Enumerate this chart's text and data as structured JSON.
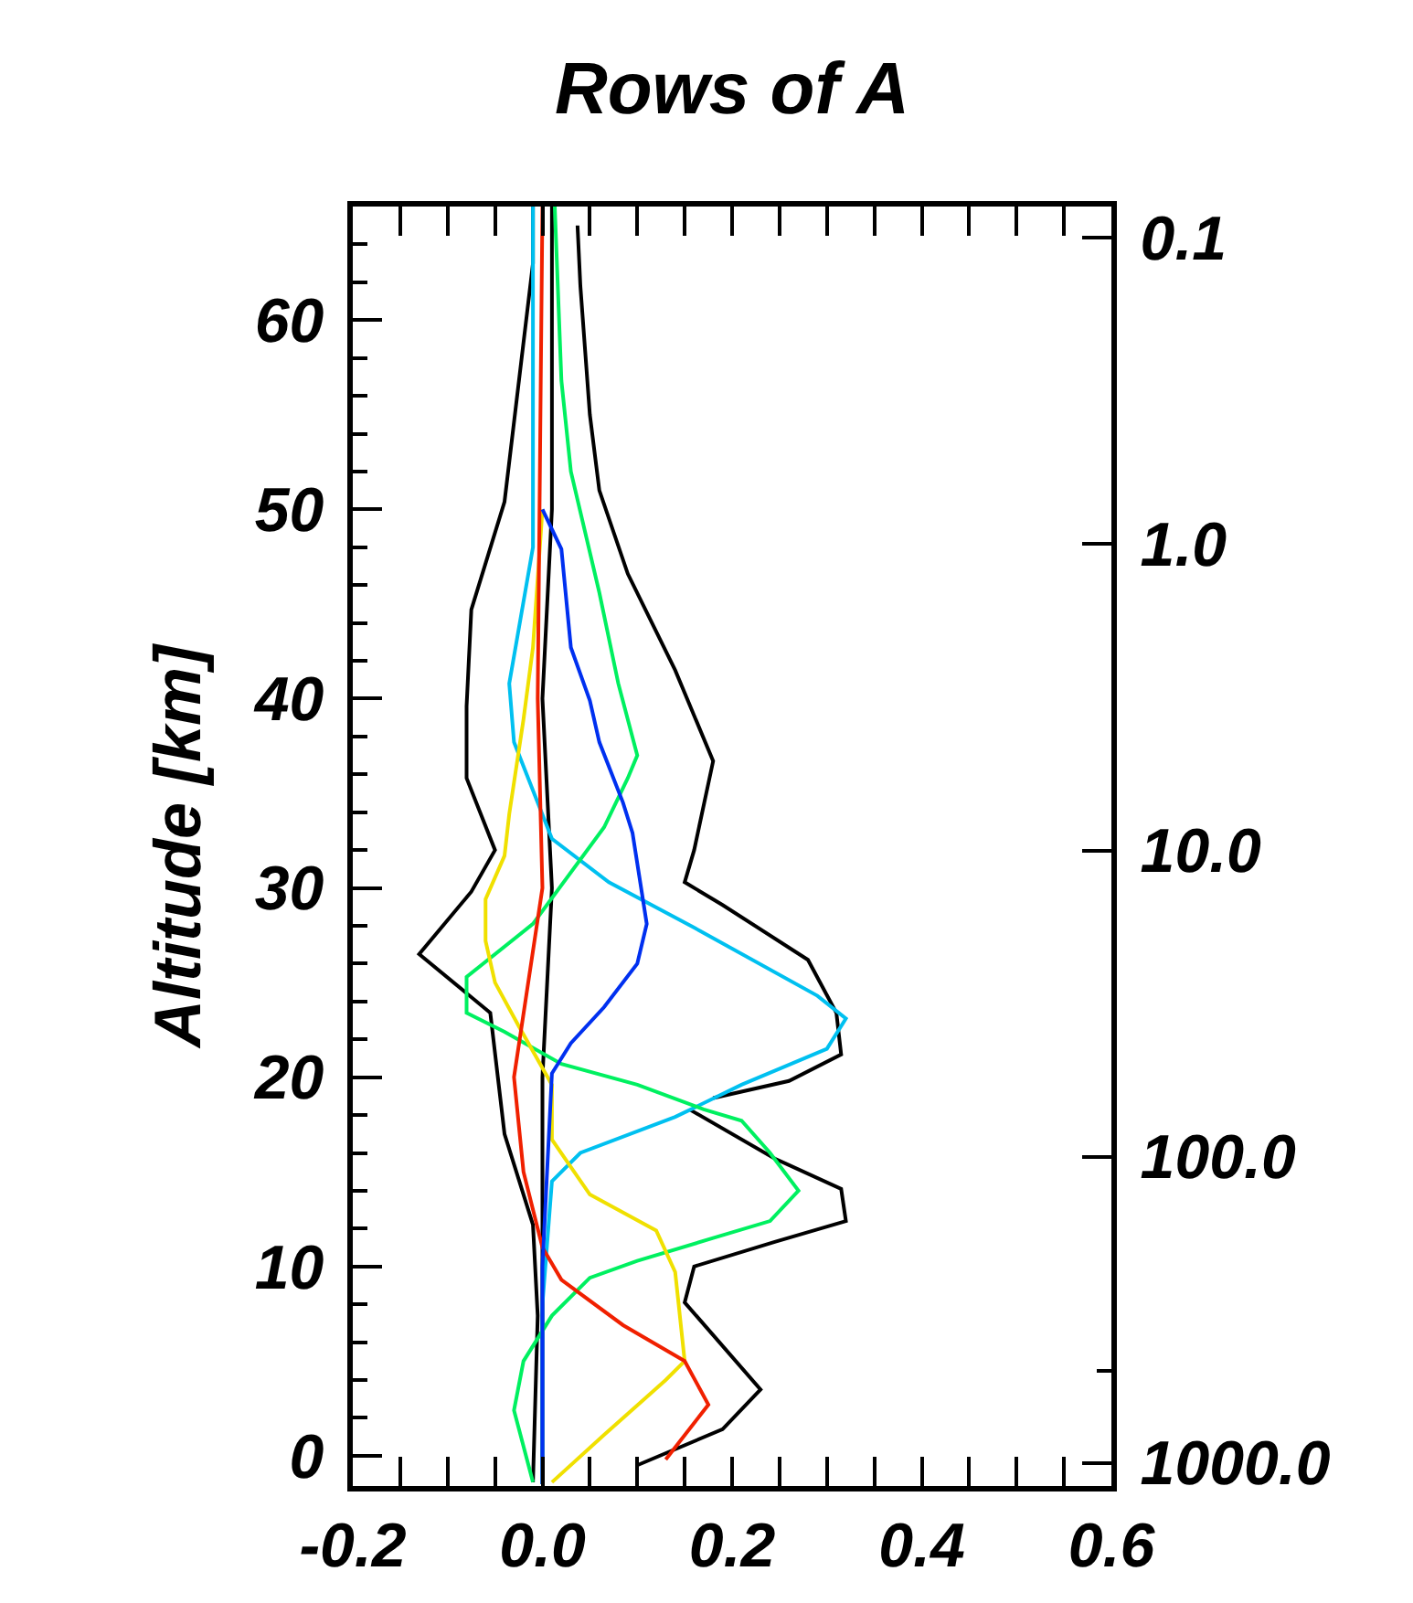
{
  "chart_data": {
    "type": "line",
    "title": "Rows of A",
    "ylabel": "Altitude [km]",
    "xlim": [
      -0.2,
      0.6
    ],
    "xticks": [
      {
        "value": -0.2,
        "label": "-0.2"
      },
      {
        "value": 0.0,
        "label": "0.0"
      },
      {
        "value": 0.2,
        "label": "0.2"
      },
      {
        "value": 0.4,
        "label": "0.4"
      },
      {
        "value": 0.6,
        "label": "0.6"
      }
    ],
    "ylim": [
      -1.6,
      66.0
    ],
    "yticks": [
      0,
      10,
      20,
      30,
      40,
      50,
      60
    ],
    "y2lim": [
      1190,
      0.079
    ],
    "y2ticks": [
      {
        "value": 0.1,
        "label": "0.1"
      },
      {
        "value": 1,
        "label": "1.0"
      },
      {
        "value": 10,
        "label": "10.0"
      },
      {
        "value": 100,
        "label": "100.0"
      },
      {
        "value": 1000,
        "label": "1000.0"
      }
    ],
    "log": "y2",
    "marker": "none",
    "line_style": "solid",
    "series": [
      {
        "color": "#000000",
        "x": [
          0.037,
          0.04,
          0.05,
          0.06,
          0.09,
          0.14,
          0.18,
          0.16,
          0.15,
          0.19,
          0.28,
          0.31,
          0.315,
          0.26,
          0.18
        ],
        "values": [
          65,
          61.8,
          55,
          51,
          46.6,
          41.5,
          36.7,
          32,
          30.3,
          29.1,
          26.2,
          23.4,
          21.2,
          19.8,
          18.9
        ]
      },
      {
        "color": "#000000",
        "x": [
          0.155,
          0.245,
          0.315,
          0.32,
          0.245,
          0.16,
          0.15,
          0.23,
          0.19,
          0.1
        ],
        "values": [
          18.3,
          15.7,
          14.1,
          12.4,
          11.3,
          10.0,
          8.1,
          3.5,
          1.4,
          -0.5
        ]
      },
      {
        "color": "#000000",
        "x": [
          -0.01,
          -0.01,
          -0.04,
          -0.075,
          -0.08,
          -0.08,
          -0.05,
          -0.075,
          -0.13,
          -0.055,
          -0.04,
          -0.01,
          -0.005,
          -0.01
        ],
        "values": [
          66,
          63,
          50.4,
          44.7,
          39.6,
          35.8,
          32,
          29.8,
          26.5,
          23.4,
          17.0,
          12.2,
          7.4,
          -1.4
        ]
      },
      {
        "color": "#000000",
        "x": [
          0.01,
          0.01,
          0.0,
          0.01,
          0.0,
          0.0,
          0.0
        ],
        "values": [
          66,
          50,
          40,
          30,
          20,
          10,
          -1.5
        ]
      },
      {
        "color": "#00c0f0",
        "x": [
          -0.01,
          -0.01,
          -0.035,
          -0.03,
          0.01,
          0.07,
          0.16,
          0.29,
          0.32,
          0.3,
          0.21,
          0.14,
          0.04,
          0.01,
          0.0,
          0.0
        ],
        "values": [
          66,
          48,
          40.8,
          37.7,
          32.6,
          30.3,
          27.9,
          24.3,
          23.1,
          21.5,
          19.6,
          17.9,
          16.0,
          14.5,
          8,
          -1.5
        ]
      },
      {
        "color": "#00f060",
        "x": [
          0.013,
          0.02,
          0.03,
          0.06,
          0.08,
          0.1,
          0.09,
          0.065,
          -0.01,
          -0.08,
          -0.08,
          -0.04,
          0.02,
          0.1,
          0.17,
          0.21,
          0.24,
          0.27,
          0.24,
          0.18,
          0.1,
          0.05,
          0.01,
          -0.02,
          -0.03,
          -0.01
        ],
        "values": [
          66,
          56.8,
          52,
          45.6,
          40.8,
          37.0,
          35.8,
          33.2,
          28.1,
          25.3,
          23.4,
          22.4,
          20.7,
          19.6,
          18.3,
          17.7,
          16.0,
          14.0,
          12.4,
          11.5,
          10.3,
          9.4,
          7.4,
          5.0,
          2.4,
          -1.4
        ]
      },
      {
        "color": "#f0e000",
        "x": [
          0.0,
          -0.01,
          -0.02,
          -0.035,
          -0.04,
          -0.06,
          -0.06,
          -0.05,
          -0.025,
          0.01,
          0.01,
          0.05,
          0.12,
          0.14,
          0.15,
          0.13,
          0.065,
          0.01
        ],
        "values": [
          50,
          42.7,
          38.9,
          33.9,
          31.7,
          29.4,
          27.2,
          25.0,
          22.7,
          19.6,
          16.7,
          13.8,
          11.9,
          9.7,
          5.0,
          4.0,
          1.1,
          -1.4
        ]
      },
      {
        "color": "#f02000",
        "x": [
          0.0,
          -0.005,
          0.0,
          -0.03,
          -0.02,
          0.0,
          0.02,
          0.085,
          0.15,
          0.175,
          0.13
        ],
        "values": [
          66,
          40,
          30,
          20,
          15,
          11,
          9.3,
          6.9,
          5.0,
          2.7,
          -0.2
        ]
      },
      {
        "color": "#0030f0",
        "x": [
          0.0,
          0.02,
          0.03,
          0.05,
          0.06,
          0.085,
          0.095,
          0.11,
          0.1,
          0.065,
          0.03,
          0.01,
          0.0,
          0.0
        ],
        "values": [
          50,
          47.9,
          42.7,
          39.9,
          37.7,
          34.5,
          32.9,
          28.1,
          26.0,
          23.7,
          21.8,
          20.2,
          10,
          -1.5
        ]
      }
    ]
  }
}
